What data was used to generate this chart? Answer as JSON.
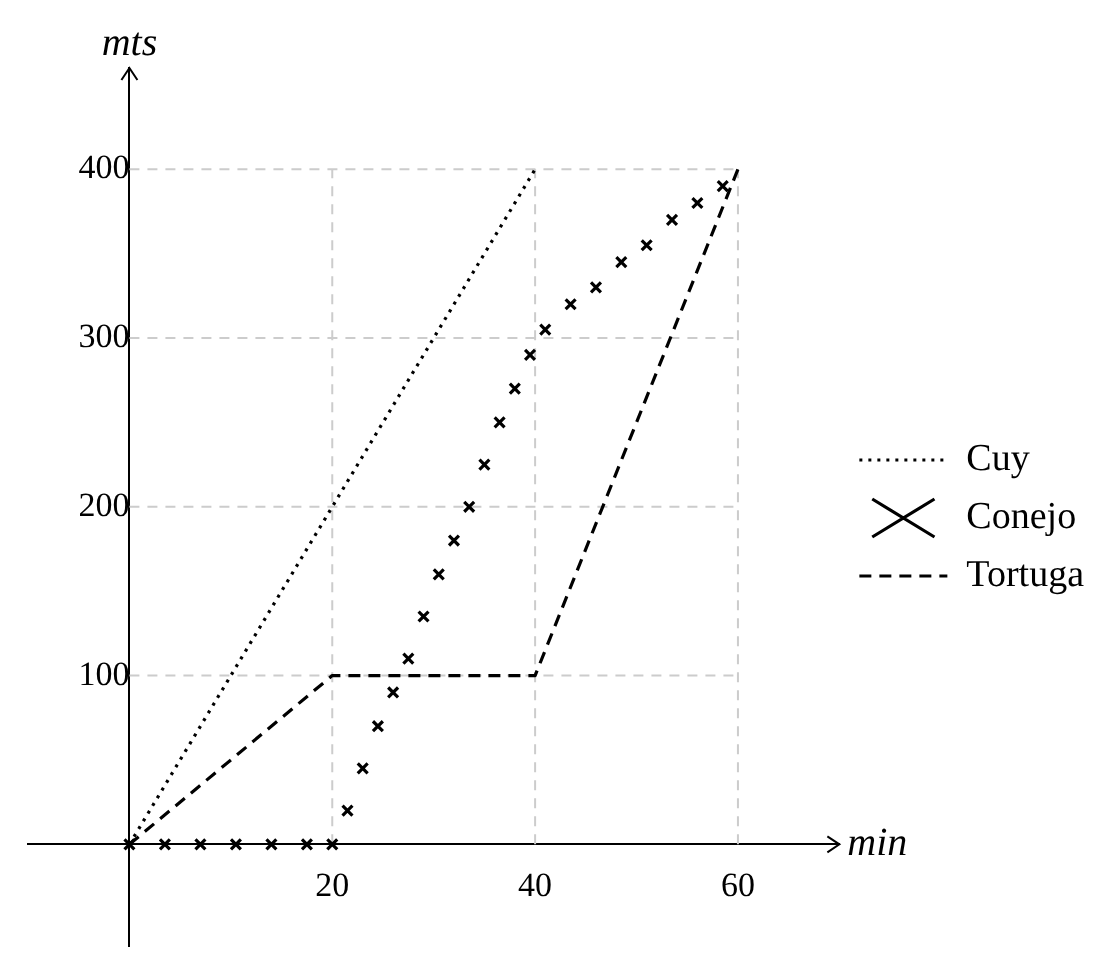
{
  "chart_data": {
    "type": "line",
    "xlabel": "min",
    "ylabel": "mts",
    "xlim": [
      -10,
      70
    ],
    "ylim": [
      -60,
      460
    ],
    "xticks": [
      20,
      40,
      60
    ],
    "yticks": [
      100,
      200,
      300,
      400
    ],
    "grid": true,
    "legend": "right",
    "series": [
      {
        "name": "Cuy",
        "color": "#000000",
        "line_style": "dotted",
        "marker": "none",
        "x": [
          0,
          40
        ],
        "values": [
          0,
          400
        ]
      },
      {
        "name": "Conejo",
        "type": "scatter",
        "color": "#000000",
        "marker": "cross",
        "x": [
          0,
          3.5,
          7,
          10.5,
          14,
          17.5,
          20,
          21.5,
          23,
          24.5,
          26,
          27.5,
          29,
          30.5,
          32,
          33.5,
          35,
          36.5,
          38,
          39.5,
          41,
          43.5,
          46,
          48.5,
          51,
          53.5,
          56,
          58.5
        ],
        "values": [
          0,
          0,
          0,
          0,
          0,
          0,
          0,
          20,
          45,
          70,
          90,
          110,
          135,
          160,
          180,
          200,
          225,
          250,
          270,
          290,
          305,
          320,
          330,
          345,
          355,
          370,
          380,
          390
        ]
      },
      {
        "name": "Tortuga",
        "color": "#000000",
        "line_style": "dashed",
        "marker": "none",
        "x": [
          0,
          20,
          40,
          60
        ],
        "values": [
          0,
          100,
          100,
          400
        ]
      }
    ]
  }
}
